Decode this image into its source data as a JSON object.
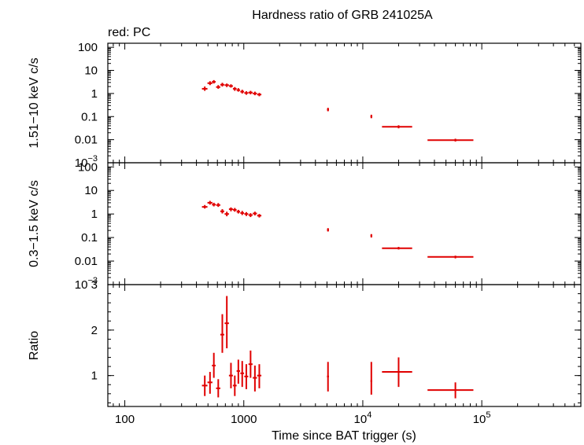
{
  "chart_data": {
    "title": "Hardness ratio of GRB 241025A",
    "subtitle": "red: PC",
    "xlabel": "Time since BAT trigger (s)",
    "x_scale": "log",
    "xlim": [
      72,
      680000
    ],
    "x_ticks": [
      {
        "value": 100,
        "label": "100"
      },
      {
        "value": 1000,
        "label": "1000"
      },
      {
        "value": 10000,
        "label": "10",
        "sup": "4"
      },
      {
        "value": 100000,
        "label": "10",
        "sup": "5"
      }
    ],
    "color": "#e00000",
    "panels": [
      {
        "id": "hard",
        "ylabel": "1.51−10 keV c/s",
        "y_scale": "log",
        "ylim": [
          0.001,
          150
        ],
        "y_ticks": [
          {
            "value": 100,
            "label": "100"
          },
          {
            "value": 10,
            "label": "10"
          },
          {
            "value": 1,
            "label": "1"
          },
          {
            "value": 0.1,
            "label": "0.1"
          },
          {
            "value": 0.01,
            "label": "0.01"
          },
          {
            "value": 0.001,
            "label": "10",
            "sup": "−3"
          }
        ],
        "points": [
          {
            "x": 470,
            "xlo": 445,
            "xhi": 495,
            "y": 1.6,
            "ylo": 1.3,
            "yhi": 2.0
          },
          {
            "x": 520,
            "xlo": 495,
            "xhi": 545,
            "y": 2.8,
            "ylo": 2.3,
            "yhi": 3.4
          },
          {
            "x": 560,
            "xlo": 540,
            "xhi": 580,
            "y": 3.2,
            "ylo": 2.7,
            "yhi": 3.8
          },
          {
            "x": 610,
            "xlo": 585,
            "xhi": 635,
            "y": 1.9,
            "ylo": 1.6,
            "yhi": 2.3
          },
          {
            "x": 660,
            "xlo": 635,
            "xhi": 685,
            "y": 2.4,
            "ylo": 2.0,
            "yhi": 2.9
          },
          {
            "x": 720,
            "xlo": 690,
            "xhi": 750,
            "y": 2.3,
            "ylo": 1.9,
            "yhi": 2.7
          },
          {
            "x": 780,
            "xlo": 750,
            "xhi": 810,
            "y": 2.1,
            "ylo": 1.8,
            "yhi": 2.5
          },
          {
            "x": 840,
            "xlo": 810,
            "xhi": 870,
            "y": 1.6,
            "ylo": 1.3,
            "yhi": 1.9
          },
          {
            "x": 900,
            "xlo": 870,
            "xhi": 930,
            "y": 1.4,
            "ylo": 1.2,
            "yhi": 1.7
          },
          {
            "x": 970,
            "xlo": 935,
            "xhi": 1005,
            "y": 1.2,
            "ylo": 1.0,
            "yhi": 1.45
          },
          {
            "x": 1050,
            "xlo": 1010,
            "xhi": 1090,
            "y": 1.05,
            "ylo": 0.88,
            "yhi": 1.25
          },
          {
            "x": 1140,
            "xlo": 1095,
            "xhi": 1185,
            "y": 1.1,
            "ylo": 0.92,
            "yhi": 1.3
          },
          {
            "x": 1240,
            "xlo": 1190,
            "xhi": 1290,
            "y": 1.0,
            "ylo": 0.84,
            "yhi": 1.2
          },
          {
            "x": 1350,
            "xlo": 1295,
            "xhi": 1405,
            "y": 0.9,
            "ylo": 0.76,
            "yhi": 1.06
          },
          {
            "x": 5100,
            "xlo": 5000,
            "xhi": 5200,
            "y": 0.2,
            "ylo": 0.17,
            "yhi": 0.24
          },
          {
            "x": 11800,
            "xlo": 11600,
            "xhi": 12000,
            "y": 0.1,
            "ylo": 0.085,
            "yhi": 0.12
          },
          {
            "x": 20000,
            "xlo": 14500,
            "xhi": 26000,
            "y": 0.036,
            "ylo": 0.031,
            "yhi": 0.042
          },
          {
            "x": 60000,
            "xlo": 35000,
            "xhi": 85000,
            "y": 0.0095,
            "ylo": 0.0083,
            "yhi": 0.011
          }
        ]
      },
      {
        "id": "soft",
        "ylabel": "0.3−1.5 keV c/s",
        "y_scale": "log",
        "ylim": [
          0.001,
          150
        ],
        "y_ticks": [
          {
            "value": 100,
            "label": "100"
          },
          {
            "value": 10,
            "label": "10"
          },
          {
            "value": 1,
            "label": "1"
          },
          {
            "value": 0.1,
            "label": "0.1"
          },
          {
            "value": 0.01,
            "label": "0.01"
          },
          {
            "value": 0.001,
            "label": "10",
            "sup": "−3"
          }
        ],
        "points": [
          {
            "x": 470,
            "xlo": 445,
            "xhi": 495,
            "y": 2.0,
            "ylo": 1.7,
            "yhi": 2.4
          },
          {
            "x": 520,
            "xlo": 495,
            "xhi": 545,
            "y": 3.0,
            "ylo": 2.5,
            "yhi": 3.6
          },
          {
            "x": 560,
            "xlo": 540,
            "xhi": 580,
            "y": 2.5,
            "ylo": 2.1,
            "yhi": 3.0
          },
          {
            "x": 610,
            "xlo": 585,
            "xhi": 635,
            "y": 2.4,
            "ylo": 2.0,
            "yhi": 2.9
          },
          {
            "x": 660,
            "xlo": 635,
            "xhi": 685,
            "y": 1.3,
            "ylo": 1.05,
            "yhi": 1.6
          },
          {
            "x": 720,
            "xlo": 690,
            "xhi": 750,
            "y": 1.0,
            "ylo": 0.8,
            "yhi": 1.25
          },
          {
            "x": 780,
            "xlo": 750,
            "xhi": 810,
            "y": 1.6,
            "ylo": 1.3,
            "yhi": 1.9
          },
          {
            "x": 840,
            "xlo": 810,
            "xhi": 870,
            "y": 1.5,
            "ylo": 1.25,
            "yhi": 1.8
          },
          {
            "x": 900,
            "xlo": 870,
            "xhi": 930,
            "y": 1.25,
            "ylo": 1.05,
            "yhi": 1.5
          },
          {
            "x": 970,
            "xlo": 935,
            "xhi": 1005,
            "y": 1.1,
            "ylo": 0.9,
            "yhi": 1.35
          },
          {
            "x": 1050,
            "xlo": 1010,
            "xhi": 1090,
            "y": 1.0,
            "ylo": 0.82,
            "yhi": 1.2
          },
          {
            "x": 1140,
            "xlo": 1095,
            "xhi": 1185,
            "y": 0.9,
            "ylo": 0.74,
            "yhi": 1.08
          },
          {
            "x": 1240,
            "xlo": 1190,
            "xhi": 1290,
            "y": 1.05,
            "ylo": 0.87,
            "yhi": 1.25
          },
          {
            "x": 1350,
            "xlo": 1295,
            "xhi": 1405,
            "y": 0.85,
            "ylo": 0.71,
            "yhi": 1.0
          },
          {
            "x": 5100,
            "xlo": 5000,
            "xhi": 5200,
            "y": 0.21,
            "ylo": 0.18,
            "yhi": 0.25
          },
          {
            "x": 11800,
            "xlo": 11600,
            "xhi": 12000,
            "y": 0.12,
            "ylo": 0.1,
            "yhi": 0.14
          },
          {
            "x": 20000,
            "xlo": 14500,
            "xhi": 26000,
            "y": 0.035,
            "ylo": 0.031,
            "yhi": 0.04
          },
          {
            "x": 60000,
            "xlo": 35000,
            "xhi": 85000,
            "y": 0.015,
            "ylo": 0.013,
            "yhi": 0.017
          }
        ]
      },
      {
        "id": "ratio",
        "ylabel": "Ratio",
        "y_scale": "linear",
        "ylim": [
          0.32,
          3.0
        ],
        "y_ticks": [
          {
            "value": 1,
            "label": "1"
          },
          {
            "value": 2,
            "label": "2"
          },
          {
            "value": 3,
            "label": "3"
          }
        ],
        "y_minor_step": 0.2,
        "points": [
          {
            "x": 470,
            "xlo": 445,
            "xhi": 495,
            "y": 0.78,
            "ylo": 0.55,
            "yhi": 1.0
          },
          {
            "x": 520,
            "xlo": 495,
            "xhi": 545,
            "y": 0.85,
            "ylo": 0.6,
            "yhi": 1.08
          },
          {
            "x": 560,
            "xlo": 540,
            "xhi": 580,
            "y": 1.22,
            "ylo": 0.95,
            "yhi": 1.5
          },
          {
            "x": 610,
            "xlo": 585,
            "xhi": 635,
            "y": 0.72,
            "ylo": 0.52,
            "yhi": 0.92
          },
          {
            "x": 660,
            "xlo": 635,
            "xhi": 685,
            "y": 1.9,
            "ylo": 1.5,
            "yhi": 2.35
          },
          {
            "x": 720,
            "xlo": 690,
            "xhi": 750,
            "y": 2.15,
            "ylo": 1.6,
            "yhi": 2.75
          },
          {
            "x": 780,
            "xlo": 750,
            "xhi": 810,
            "y": 1.0,
            "ylo": 0.72,
            "yhi": 1.28
          },
          {
            "x": 840,
            "xlo": 810,
            "xhi": 870,
            "y": 0.78,
            "ylo": 0.55,
            "yhi": 1.0
          },
          {
            "x": 900,
            "xlo": 870,
            "xhi": 930,
            "y": 1.1,
            "ylo": 0.82,
            "yhi": 1.35
          },
          {
            "x": 970,
            "xlo": 935,
            "xhi": 1005,
            "y": 1.05,
            "ylo": 0.75,
            "yhi": 1.32
          },
          {
            "x": 1050,
            "xlo": 1010,
            "xhi": 1090,
            "y": 0.98,
            "ylo": 0.7,
            "yhi": 1.25
          },
          {
            "x": 1140,
            "xlo": 1095,
            "xhi": 1185,
            "y": 1.25,
            "ylo": 0.95,
            "yhi": 1.55
          },
          {
            "x": 1240,
            "xlo": 1190,
            "xhi": 1290,
            "y": 0.95,
            "ylo": 0.65,
            "yhi": 1.22
          },
          {
            "x": 1350,
            "xlo": 1295,
            "xhi": 1405,
            "y": 1.0,
            "ylo": 0.72,
            "yhi": 1.25
          },
          {
            "x": 5100,
            "xlo": 5000,
            "xhi": 5200,
            "y": 0.98,
            "ylo": 0.65,
            "yhi": 1.3
          },
          {
            "x": 11800,
            "xlo": 11600,
            "xhi": 12000,
            "y": 0.88,
            "ylo": 0.58,
            "yhi": 1.3
          },
          {
            "x": 20000,
            "xlo": 14500,
            "xhi": 26000,
            "y": 1.08,
            "ylo": 0.75,
            "yhi": 1.4
          },
          {
            "x": 60000,
            "xlo": 35000,
            "xhi": 85000,
            "y": 0.68,
            "ylo": 0.5,
            "yhi": 0.85
          }
        ]
      }
    ]
  }
}
